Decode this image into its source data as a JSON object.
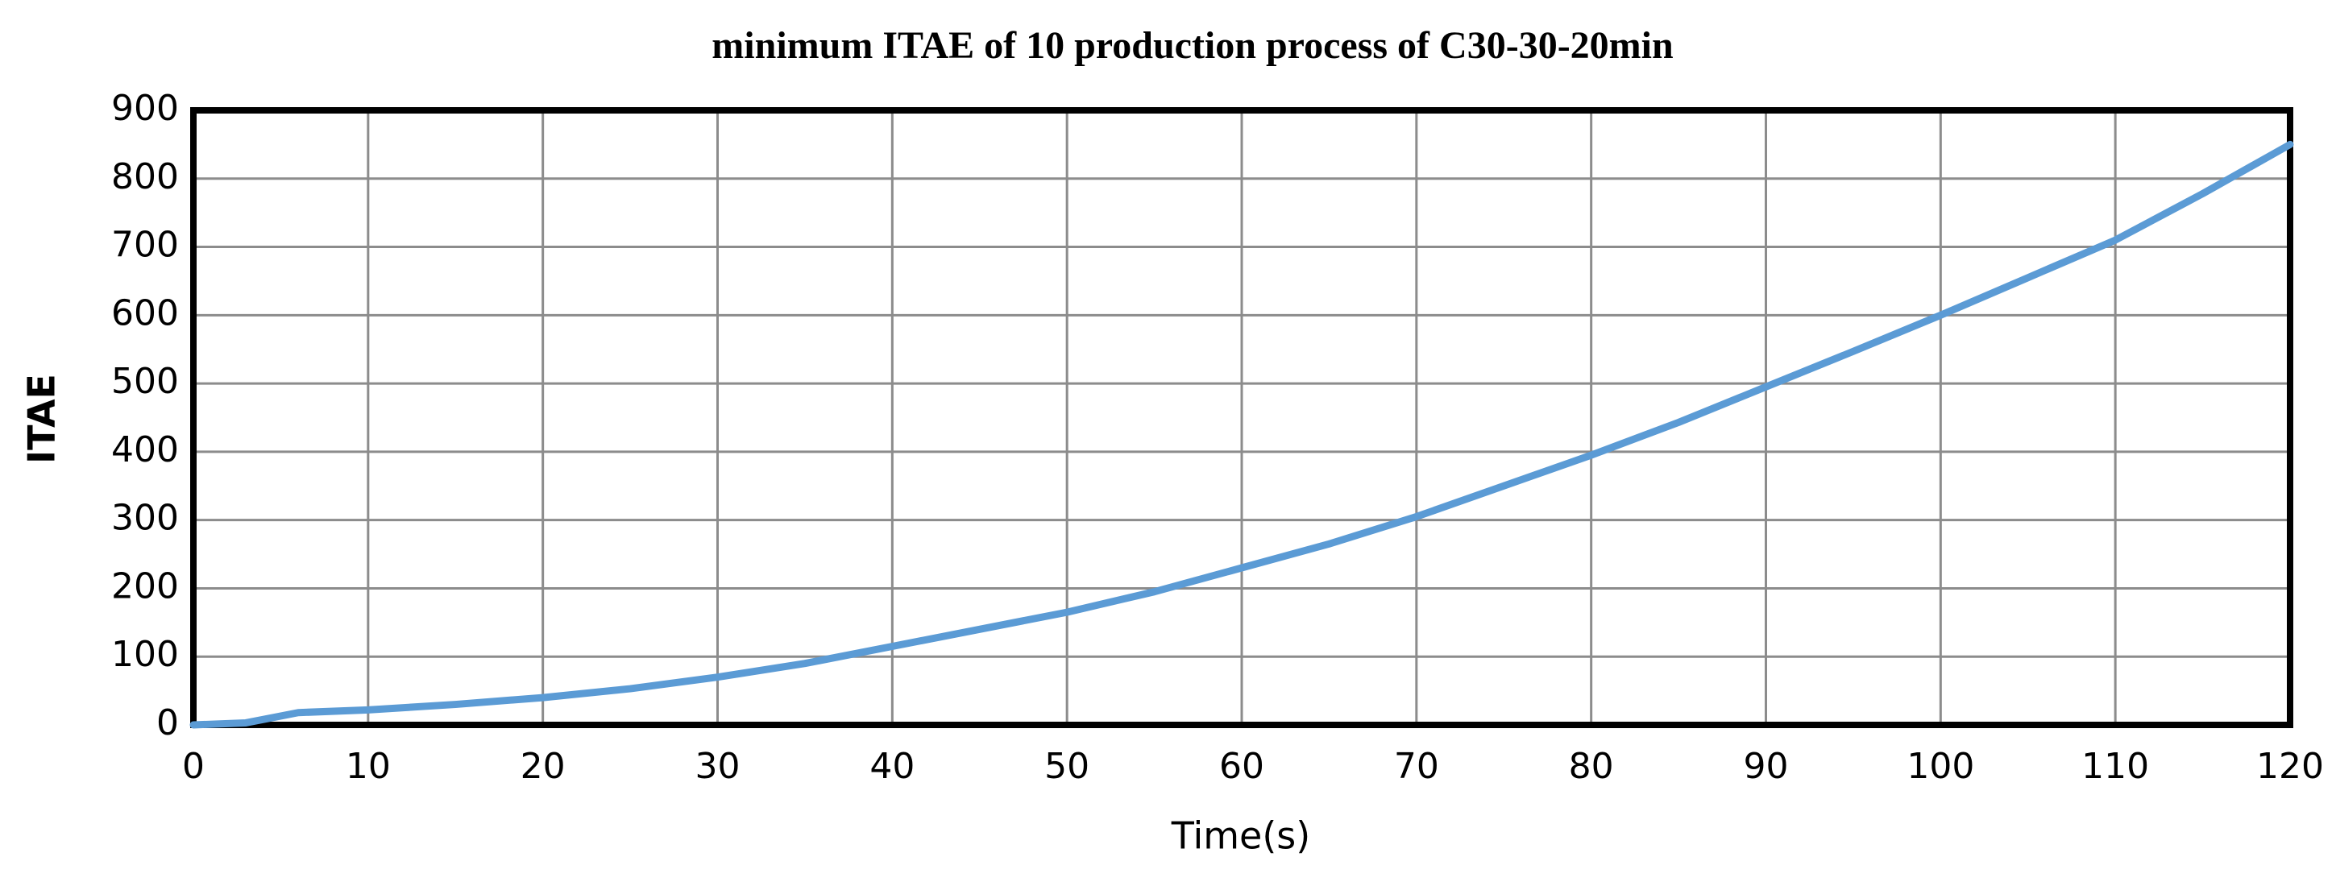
{
  "chart_data": {
    "type": "line",
    "title": "minimum ITAE  of 10 production process of C30-30-20min",
    "x_label": "Time(s)",
    "y_label": "ITAE",
    "series": [
      {
        "name": "ITAE",
        "color": "#5b9bd5",
        "x": [
          0,
          3,
          6,
          10,
          15,
          20,
          25,
          30,
          35,
          40,
          45,
          50,
          55,
          60,
          65,
          70,
          75,
          80,
          85,
          90,
          95,
          100,
          105,
          110,
          115,
          120
        ],
        "values": [
          0,
          3,
          18,
          22,
          30,
          40,
          53,
          70,
          90,
          115,
          140,
          165,
          195,
          230,
          265,
          305,
          350,
          395,
          443,
          495,
          547,
          600,
          655,
          710,
          778,
          850
        ]
      }
    ],
    "xlim": [
      0,
      120
    ],
    "xticks": [
      0,
      10,
      20,
      30,
      40,
      50,
      60,
      70,
      80,
      90,
      100,
      110,
      120
    ],
    "ylim": [
      0,
      900
    ],
    "yticks": [
      0,
      100,
      200,
      300,
      400,
      500,
      600,
      700,
      800,
      900
    ],
    "grid": true
  }
}
